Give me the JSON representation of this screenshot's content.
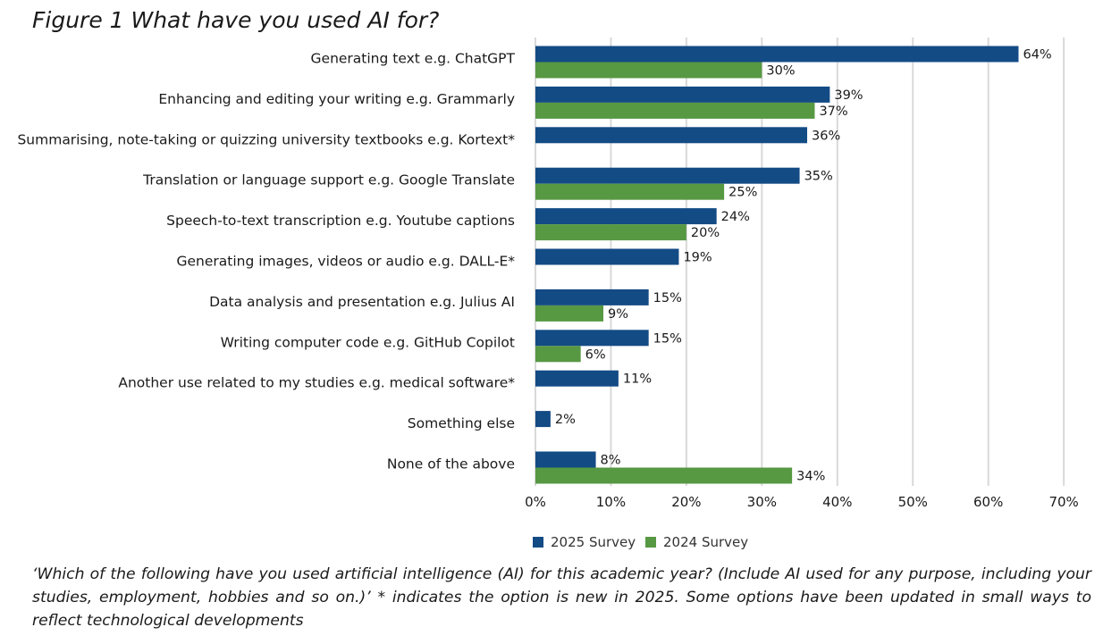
{
  "figure_title": "Figure 1 What have you used AI for?",
  "caption": "‘Which of the following have you used artificial intelligence (AI) for this academic year? (Include AI used for any purpose, including your studies, employment, hobbies and so on.)’ * indicates the option is new in 2025. Some options have been updated in small ways to reflect technological developments",
  "colors": {
    "series_2025": "#134b85",
    "series_2024": "#579843",
    "grid": "#d9d9d9"
  },
  "chart_data": {
    "type": "bar",
    "orientation": "horizontal",
    "title": "Figure 1 What have you used AI for?",
    "categories": [
      "Generating text e.g. ChatGPT",
      "Enhancing and editing your writing e.g. Grammarly",
      "Summarising, note-taking or quizzing university textbooks e.g. Kortext*",
      "Translation or language support e.g. Google Translate",
      "Speech-to-text transcription e.g. Youtube captions",
      "Generating images, videos or audio e.g. DALL-E*",
      "Data analysis and presentation e.g. Julius AI",
      "Writing computer code e.g. GitHub Copilot",
      "Another use related to my studies e.g. medical software*",
      "Something else",
      "None of the above"
    ],
    "series": [
      {
        "name": "2025 Survey",
        "values": [
          64,
          39,
          36,
          35,
          24,
          19,
          15,
          15,
          11,
          2,
          8
        ]
      },
      {
        "name": "2024 Survey",
        "values": [
          30,
          37,
          null,
          25,
          20,
          null,
          9,
          6,
          null,
          null,
          34
        ]
      }
    ],
    "value_format": "%",
    "xlim": [
      0,
      70
    ],
    "x_ticks": [
      0,
      10,
      20,
      30,
      40,
      50,
      60,
      70
    ],
    "grid": "vertical",
    "legend": "bottom-center"
  }
}
